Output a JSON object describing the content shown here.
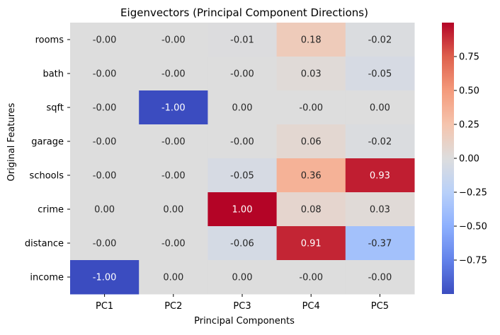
{
  "chart_data": {
    "type": "heatmap",
    "title": "Eigenvectors (Principal Component Directions)",
    "xlabel": "Principal Components",
    "ylabel": "Original Features",
    "x_categories": [
      "PC1",
      "PC2",
      "PC3",
      "PC4",
      "PC5"
    ],
    "y_categories": [
      "rooms",
      "bath",
      "sqft",
      "garage",
      "schools",
      "crime",
      "distance",
      "income"
    ],
    "values": [
      [
        -0.0,
        -0.0,
        -0.01,
        0.18,
        -0.02
      ],
      [
        -0.0,
        -0.0,
        -0.0,
        0.03,
        -0.05
      ],
      [
        -0.0,
        -1.0,
        0.0,
        -0.0,
        0.0
      ],
      [
        -0.0,
        -0.0,
        -0.0,
        0.06,
        -0.02
      ],
      [
        -0.0,
        -0.0,
        -0.05,
        0.36,
        0.93
      ],
      [
        0.0,
        0.0,
        1.0,
        0.08,
        0.03
      ],
      [
        -0.0,
        -0.0,
        -0.06,
        0.91,
        -0.37
      ],
      [
        -1.0,
        0.0,
        0.0,
        -0.0,
        -0.0
      ]
    ],
    "cell_labels": [
      [
        "-0.00",
        "-0.00",
        "-0.01",
        "0.18",
        "-0.02"
      ],
      [
        "-0.00",
        "-0.00",
        "-0.00",
        "0.03",
        "-0.05"
      ],
      [
        "-0.00",
        "-1.00",
        "0.00",
        "-0.00",
        "0.00"
      ],
      [
        "-0.00",
        "-0.00",
        "-0.00",
        "0.06",
        "-0.02"
      ],
      [
        "-0.00",
        "-0.00",
        "-0.05",
        "0.36",
        "0.93"
      ],
      [
        "0.00",
        "0.00",
        "1.00",
        "0.08",
        "0.03"
      ],
      [
        "-0.00",
        "-0.00",
        "-0.06",
        "0.91",
        "-0.37"
      ],
      [
        "-1.00",
        "0.00",
        "0.00",
        "-0.00",
        "-0.00"
      ]
    ],
    "colormap": "coolwarm",
    "vmin": -1.0,
    "vmax": 1.0,
    "colorbar_ticks": [
      "0.75",
      "0.50",
      "0.25",
      "0.00",
      "−0.25",
      "−0.50",
      "−0.75"
    ],
    "colorbar_tick_values": [
      0.75,
      0.5,
      0.25,
      0.0,
      -0.25,
      -0.5,
      -0.75
    ],
    "legend_placement": "right",
    "grid": false
  }
}
